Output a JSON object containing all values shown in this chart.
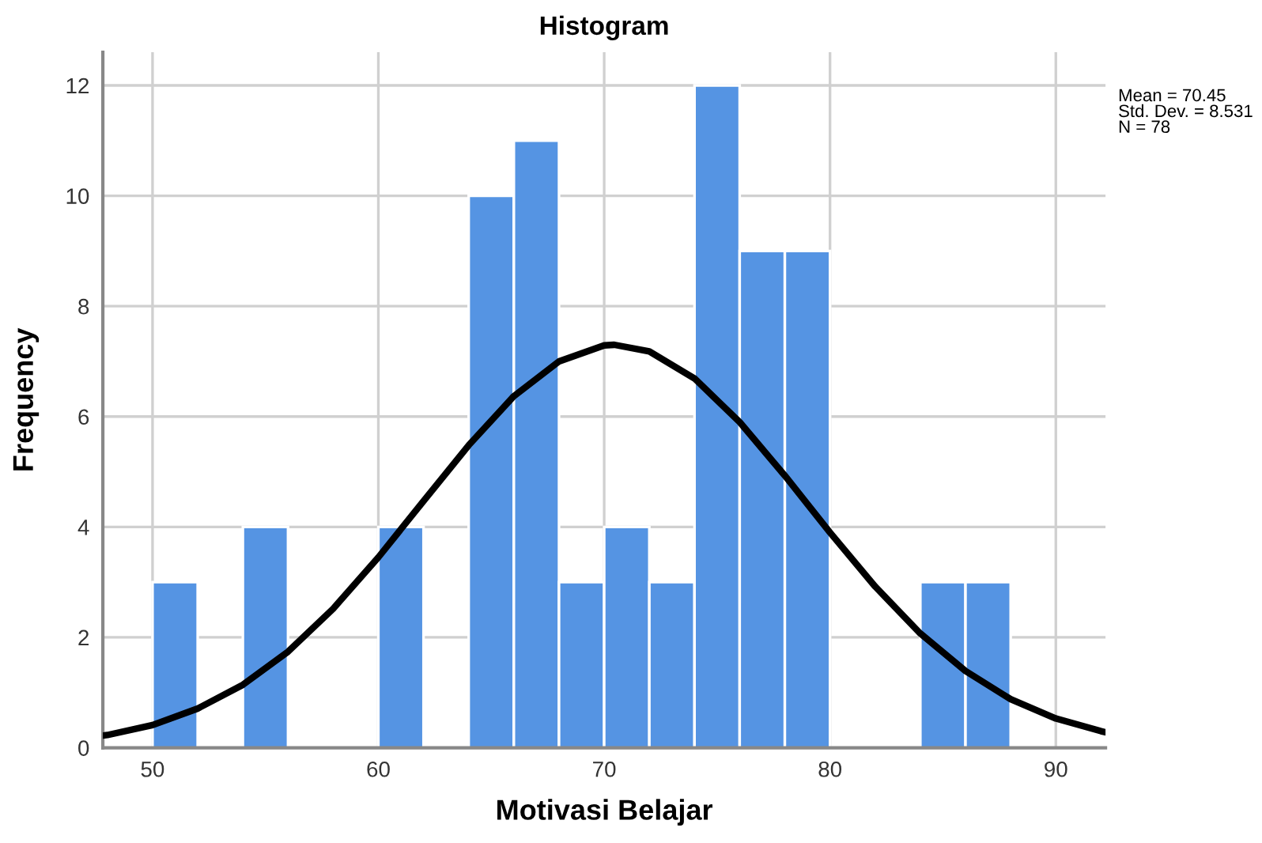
{
  "chart_data": {
    "type": "histogram",
    "title": "Histogram",
    "xlabel": "Motivasi Belajar",
    "ylabel": "Frequency",
    "bins": [
      50,
      52,
      54,
      56,
      58,
      60,
      62,
      64,
      66,
      68,
      70,
      72,
      74,
      76,
      78,
      80,
      82,
      84,
      86,
      88
    ],
    "series": [
      {
        "color": "#5594e3",
        "values": [
          3,
          0,
          4,
          0,
          0,
          4,
          0,
          10,
          11,
          3,
          4,
          3,
          12,
          9,
          9,
          0,
          0,
          3,
          3
        ]
      },
      {
        "type": "line",
        "color": "#000000",
        "x": [
          47.8,
          48,
          50,
          52,
          54,
          56,
          58,
          60,
          62,
          64,
          66,
          68,
          70,
          70.45,
          72,
          74,
          76,
          78,
          80,
          82,
          84,
          86,
          88,
          90,
          92,
          92.2
        ],
        "values": [
          0.22,
          0.23,
          0.41,
          0.71,
          1.14,
          1.74,
          2.52,
          3.45,
          4.47,
          5.48,
          6.37,
          7.0,
          7.29,
          7.3,
          7.18,
          6.69,
          5.9,
          4.93,
          3.9,
          2.92,
          2.07,
          1.39,
          0.88,
          0.53,
          0.3,
          0.28
        ]
      }
    ],
    "xlim": [
      47.8,
      92.2
    ],
    "xticks": [
      50,
      60,
      70,
      80,
      90
    ],
    "ylim": [
      0,
      12.6
    ],
    "yticks": [
      0,
      2,
      4,
      6,
      8,
      10,
      12
    ],
    "grid": true,
    "annotations": [
      "Mean = 70.45\nStd. Dev. = 8.531\nN = 78"
    ]
  }
}
